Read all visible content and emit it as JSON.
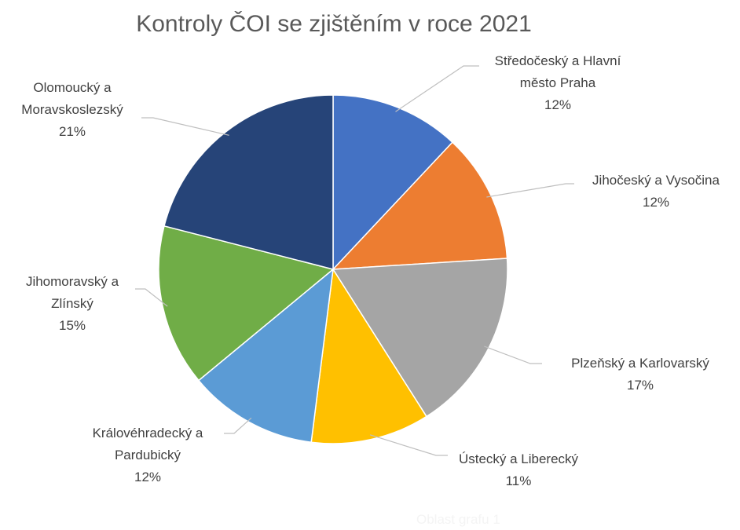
{
  "chart_data": {
    "type": "pie",
    "title": "Kontroly ČOI se zjištěním v roce 2021",
    "slices": [
      {
        "label_lines": [
          "Středočeský a Hlavní",
          "město Praha"
        ],
        "value": 12,
        "value_label": "12%",
        "color": "#4472C4"
      },
      {
        "label_lines": [
          "Jihočeský a Vysočina"
        ],
        "value": 12,
        "value_label": "12%",
        "color": "#ED7D31"
      },
      {
        "label_lines": [
          "Plzeňský a Karlovarský"
        ],
        "value": 17,
        "value_label": "17%",
        "color": "#A5A5A5"
      },
      {
        "label_lines": [
          "Ústecký a Liberecký"
        ],
        "value": 11,
        "value_label": "11%",
        "color": "#FFC000"
      },
      {
        "label_lines": [
          "Královéhradecký a",
          "Pardubický"
        ],
        "value": 12,
        "value_label": "12%",
        "color": "#5B9BD5"
      },
      {
        "label_lines": [
          "Jihomoravský a",
          "Zlínský"
        ],
        "value": 15,
        "value_label": "15%",
        "color": "#70AD47"
      },
      {
        "label_lines": [
          "Olomoucký a",
          "Moravskoslezský"
        ],
        "value": 21,
        "value_label": "21%",
        "color": "#264478"
      }
    ]
  },
  "chart_area_label": "Oblast grafu 1"
}
